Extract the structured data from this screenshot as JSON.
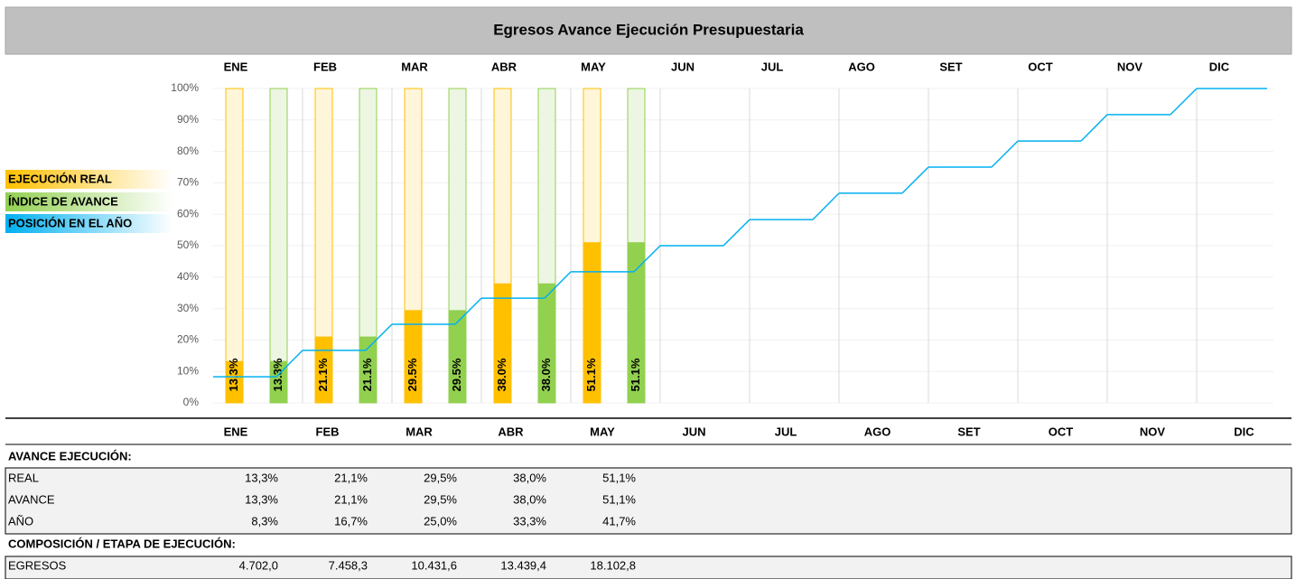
{
  "chart_data": {
    "type": "bar",
    "title": "Egresos Avance Ejecución Presupuestaria",
    "categories": [
      "ENE",
      "FEB",
      "MAR",
      "ABR",
      "MAY",
      "JUN",
      "JUL",
      "AGO",
      "SET",
      "OCT",
      "NOV",
      "DIC"
    ],
    "series": [
      {
        "name": "EJECUCIÓN REAL",
        "type": "bar",
        "color": "#ffc000",
        "values": [
          13.3,
          21.1,
          29.5,
          38.0,
          51.1,
          null,
          null,
          null,
          null,
          null,
          null,
          null
        ],
        "value_labels": [
          "13.3%",
          "21.1%",
          "29.5%",
          "38.0%",
          "51.1%",
          null,
          null,
          null,
          null,
          null,
          null,
          null
        ]
      },
      {
        "name": "ÍNDICE DE AVANCE",
        "type": "bar",
        "color": "#92d050",
        "values": [
          13.3,
          21.1,
          29.5,
          38.0,
          51.1,
          null,
          null,
          null,
          null,
          null,
          null,
          null
        ],
        "value_labels": [
          "13.3%",
          "21.1%",
          "29.5%",
          "38.0%",
          "51.1%",
          null,
          null,
          null,
          null,
          null,
          null,
          null
        ]
      },
      {
        "name": "POSICIÓN EN EL AÑO",
        "type": "line",
        "color": "#00b0f0",
        "values": [
          8.3,
          16.7,
          25.0,
          33.3,
          41.7,
          50.0,
          58.3,
          66.7,
          75.0,
          83.3,
          91.7,
          100.0
        ]
      }
    ],
    "ylim": [
      0,
      100
    ],
    "yticks": [
      {
        "value": 0,
        "label": "0%"
      },
      {
        "value": 10,
        "label": "10%"
      },
      {
        "value": 20,
        "label": "20%"
      },
      {
        "value": 30,
        "label": "30%"
      },
      {
        "value": 40,
        "label": "40%"
      },
      {
        "value": 50,
        "label": "50%"
      },
      {
        "value": 60,
        "label": "60%"
      },
      {
        "value": 70,
        "label": "70%"
      },
      {
        "value": 80,
        "label": "80%"
      },
      {
        "value": 90,
        "label": "90%"
      },
      {
        "value": 100,
        "label": "100%"
      }
    ],
    "grid": true
  },
  "table": {
    "sections": [
      {
        "title": "AVANCE EJECUCIÓN:",
        "rows": [
          {
            "label": "REAL",
            "values": [
              "13,3%",
              "21,1%",
              "29,5%",
              "38,0%",
              "51,1%"
            ]
          },
          {
            "label": "AVANCE",
            "values": [
              "13,3%",
              "21,1%",
              "29,5%",
              "38,0%",
              "51,1%"
            ]
          },
          {
            "label": "AÑO",
            "values": [
              "8,3%",
              "16,7%",
              "25,0%",
              "33,3%",
              "41,7%"
            ]
          }
        ]
      },
      {
        "title": "COMPOSICIÓN / ETAPA DE EJECUCIÓN:",
        "rows": [
          {
            "label": "EGRESOS",
            "values": [
              "4.702,0",
              "7.458,3",
              "10.431,6",
              "13.439,4",
              "18.102,8"
            ]
          }
        ]
      }
    ]
  }
}
